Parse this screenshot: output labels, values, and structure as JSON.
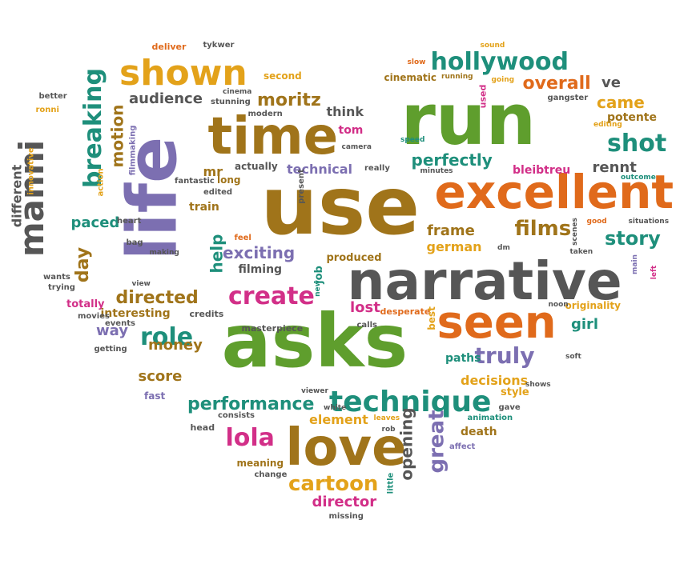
{
  "palette": {
    "green": "#5f9e2d",
    "brown": "#a0741a",
    "orange": "#e06a1b",
    "purple": "#7c6fb1",
    "gray": "#565656",
    "teal": "#1e8f7b",
    "magenta": "#d22f88",
    "gold": "#e3a21a"
  },
  "words": [
    {
      "text": "run",
      "color": "#5f9e2d"
    },
    {
      "text": "use",
      "color": "#a0741a"
    },
    {
      "text": "asks",
      "color": "#5f9e2d"
    },
    {
      "text": "life",
      "color": "#7c6fb1"
    },
    {
      "text": "narrative",
      "color": "#565656"
    },
    {
      "text": "excellent",
      "color": "#e06a1b"
    },
    {
      "text": "time",
      "color": "#a0741a"
    },
    {
      "text": "seen",
      "color": "#e06a1b"
    },
    {
      "text": "love",
      "color": "#a0741a"
    },
    {
      "text": "shown",
      "color": "#e3a21a"
    },
    {
      "text": "technique",
      "color": "#1e8f7b"
    },
    {
      "text": "manni",
      "color": "#565656"
    },
    {
      "text": "breaking",
      "color": "#1e8f7b"
    },
    {
      "text": "hollywood",
      "color": "#1e8f7b"
    },
    {
      "text": "create",
      "color": "#d22f88"
    },
    {
      "text": "shot",
      "color": "#1e8f7b"
    },
    {
      "text": "story",
      "color": "#1e8f7b"
    },
    {
      "text": "truly",
      "color": "#7c6fb1"
    },
    {
      "text": "performance",
      "color": "#1e8f7b"
    },
    {
      "text": "role",
      "color": "#1e8f7b"
    },
    {
      "text": "films",
      "color": "#a0741a"
    },
    {
      "text": "lola",
      "color": "#d22f88"
    },
    {
      "text": "cartoon",
      "color": "#e3a21a"
    },
    {
      "text": "director",
      "color": "#d22f88"
    },
    {
      "text": "great",
      "color": "#7c6fb1"
    },
    {
      "text": "opening",
      "color": "#565656"
    },
    {
      "text": "overall",
      "color": "#e06a1b"
    },
    {
      "text": "moritz",
      "color": "#a0741a"
    },
    {
      "text": "came",
      "color": "#e3a21a"
    },
    {
      "text": "ve",
      "color": "#565656"
    },
    {
      "text": "perfectly",
      "color": "#1e8f7b"
    },
    {
      "text": "exciting",
      "color": "#7c6fb1"
    },
    {
      "text": "directed",
      "color": "#a0741a"
    },
    {
      "text": "help",
      "color": "#1e8f7b"
    },
    {
      "text": "day",
      "color": "#a0741a"
    },
    {
      "text": "motion",
      "color": "#a0741a"
    },
    {
      "text": "frame",
      "color": "#a0741a"
    },
    {
      "text": "german",
      "color": "#e3a21a"
    },
    {
      "text": "audience",
      "color": "#565656"
    },
    {
      "text": "technical",
      "color": "#7c6fb1"
    },
    {
      "text": "rennt",
      "color": "#565656"
    },
    {
      "text": "potente",
      "color": "#a0741a"
    },
    {
      "text": "money",
      "color": "#a0741a"
    },
    {
      "text": "score",
      "color": "#a0741a"
    },
    {
      "text": "way",
      "color": "#7c6fb1"
    },
    {
      "text": "decisions",
      "color": "#e3a21a"
    },
    {
      "text": "girl",
      "color": "#1e8f7b"
    },
    {
      "text": "element",
      "color": "#e3a21a"
    },
    {
      "text": "paced",
      "color": "#1e8f7b"
    },
    {
      "text": "train",
      "color": "#a0741a"
    },
    {
      "text": "think",
      "color": "#565656"
    },
    {
      "text": "tom",
      "color": "#d22f88"
    },
    {
      "text": "mr",
      "color": "#a0741a"
    },
    {
      "text": "filming",
      "color": "#565656"
    },
    {
      "text": "lost",
      "color": "#d22f88"
    },
    {
      "text": "paths",
      "color": "#1e8f7b"
    },
    {
      "text": "bleibtreu",
      "color": "#d22f88"
    },
    {
      "text": "originality",
      "color": "#e3a21a"
    },
    {
      "text": "cinematic",
      "color": "#a0741a"
    },
    {
      "text": "totally",
      "color": "#d22f88"
    },
    {
      "text": "interesting",
      "color": "#a0741a"
    },
    {
      "text": "death",
      "color": "#a0741a"
    },
    {
      "text": "style",
      "color": "#e3a21a"
    },
    {
      "text": "different",
      "color": "#565656"
    },
    {
      "text": "second",
      "color": "#e3a21a"
    },
    {
      "text": "deliver",
      "color": "#e06a1b"
    },
    {
      "text": "long",
      "color": "#a0741a"
    },
    {
      "text": "actually",
      "color": "#565656"
    },
    {
      "text": "produced",
      "color": "#a0741a"
    },
    {
      "text": "job",
      "color": "#1e8f7b"
    },
    {
      "text": "meaning",
      "color": "#a0741a"
    },
    {
      "text": "gave",
      "color": "#565656"
    },
    {
      "text": "fast",
      "color": "#7c6fb1"
    },
    {
      "text": "desperate",
      "color": "#e06a1b"
    },
    {
      "text": "best",
      "color": "#e3a21a"
    },
    {
      "text": "masterpiece",
      "color": "#565656"
    },
    {
      "text": "credits",
      "color": "#565656"
    },
    {
      "text": "tykwer",
      "color": "#565656"
    },
    {
      "text": "sound",
      "color": "#e3a21a"
    },
    {
      "text": "slow",
      "color": "#e06a1b"
    },
    {
      "text": "running",
      "color": "#a0741a"
    },
    {
      "text": "going",
      "color": "#e3a21a"
    },
    {
      "text": "used",
      "color": "#d22f88"
    },
    {
      "text": "gangster",
      "color": "#565656"
    },
    {
      "text": "editing",
      "color": "#e3a21a"
    },
    {
      "text": "stunning",
      "color": "#565656"
    },
    {
      "text": "cinema",
      "color": "#565656"
    },
    {
      "text": "modern",
      "color": "#565656"
    },
    {
      "text": "filmmaking",
      "color": "#7c6fb1"
    },
    {
      "text": "fantastic",
      "color": "#565656"
    },
    {
      "text": "edited",
      "color": "#565656"
    },
    {
      "text": "present",
      "color": "#565656"
    },
    {
      "text": "really",
      "color": "#565656"
    },
    {
      "text": "minutes",
      "color": "#565656"
    },
    {
      "text": "speed",
      "color": "#1e8f7b"
    },
    {
      "text": "camera",
      "color": "#565656"
    },
    {
      "text": "outcome",
      "color": "#1e8f7b"
    },
    {
      "text": "situations",
      "color": "#565656"
    },
    {
      "text": "scenes",
      "color": "#565656"
    },
    {
      "text": "good",
      "color": "#e06a1b"
    },
    {
      "text": "taken",
      "color": "#565656"
    },
    {
      "text": "main",
      "color": "#7c6fb1"
    },
    {
      "text": "left",
      "color": "#d22f88"
    },
    {
      "text": "dm",
      "color": "#565656"
    },
    {
      "text": "noon",
      "color": "#565656"
    },
    {
      "text": "calls",
      "color": "#565656"
    },
    {
      "text": "soft",
      "color": "#565656"
    },
    {
      "text": "shows",
      "color": "#565656"
    },
    {
      "text": "animation",
      "color": "#1e8f7b"
    },
    {
      "text": "affect",
      "color": "#7c6fb1"
    },
    {
      "text": "rob",
      "color": "#565656"
    },
    {
      "text": "leaves",
      "color": "#e3a21a"
    },
    {
      "text": "white",
      "color": "#565656"
    },
    {
      "text": "viewer",
      "color": "#565656"
    },
    {
      "text": "consists",
      "color": "#565656"
    },
    {
      "text": "head",
      "color": "#565656"
    },
    {
      "text": "change",
      "color": "#565656"
    },
    {
      "text": "missing",
      "color": "#565656"
    },
    {
      "text": "little",
      "color": "#1e8f7b"
    },
    {
      "text": "getting",
      "color": "#565656"
    },
    {
      "text": "movies",
      "color": "#565656"
    },
    {
      "text": "events",
      "color": "#565656"
    },
    {
      "text": "trying",
      "color": "#565656"
    },
    {
      "text": "wants",
      "color": "#565656"
    },
    {
      "text": "bag",
      "color": "#565656"
    },
    {
      "text": "making",
      "color": "#565656"
    },
    {
      "text": "heart",
      "color": "#565656"
    },
    {
      "text": "action",
      "color": "#e3a21a"
    },
    {
      "text": "innovative",
      "color": "#e3a21a"
    },
    {
      "text": "better",
      "color": "#565656"
    },
    {
      "text": "ronni",
      "color": "#e3a21a"
    },
    {
      "text": "feel",
      "color": "#e06a1b"
    },
    {
      "text": "view",
      "color": "#565656"
    },
    {
      "text": "new",
      "color": "#1e8f7b"
    }
  ]
}
